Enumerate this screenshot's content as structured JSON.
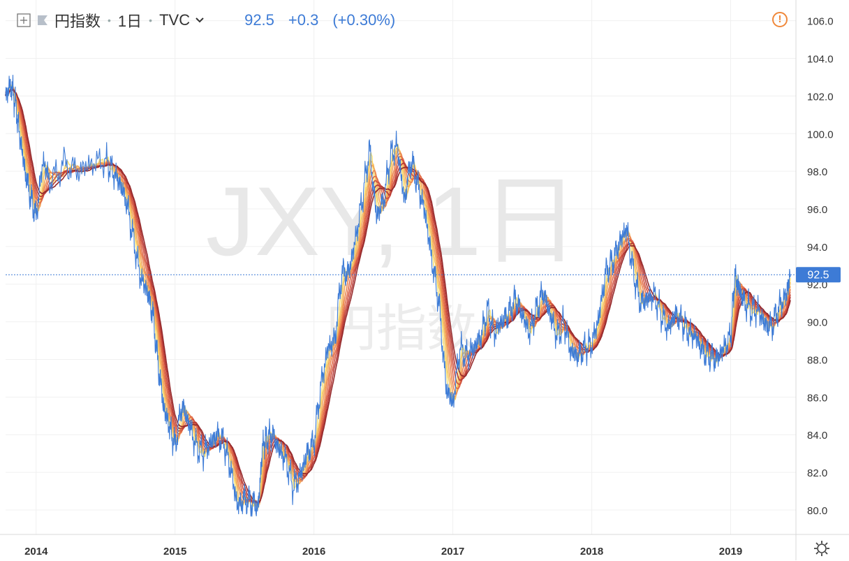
{
  "header": {
    "symbol_name": "円指数",
    "interval": "1日",
    "exchange": "TVC",
    "price": "92.5",
    "change": "+0.3",
    "change_pct": "(+0.30%)"
  },
  "watermark": {
    "symbol": "JXY, 1日",
    "name": "円指数"
  },
  "price_tag": "92.5",
  "colors": {
    "price_line": "#3d7bd6",
    "ribbon": [
      "#f7e27a",
      "#f5c564",
      "#f2a55a",
      "#ec8650",
      "#e06a48",
      "#cf5140",
      "#b63a36",
      "#952a2c"
    ],
    "price_tag_bg": "#3d7bd6",
    "warn": "#f0883a"
  },
  "icons": [
    "add-compare-icon",
    "flag-icon",
    "chevron-down-icon",
    "warning-icon",
    "settings-icon"
  ],
  "chart_data": {
    "type": "line",
    "y_axis_labels": [
      "106.0",
      "104.0",
      "102.0",
      "100.0",
      "98.0",
      "96.0",
      "94.0",
      "92.0",
      "90.0",
      "88.0",
      "86.0",
      "84.0",
      "82.0",
      "80.0"
    ],
    "y_ticks": [
      106,
      104,
      102,
      100,
      98,
      96,
      94,
      92,
      90,
      88,
      86,
      84,
      82,
      80
    ],
    "ylim": [
      78.7,
      107.1
    ],
    "x_labels": [
      "2014",
      "2015",
      "2016",
      "2017",
      "2018",
      "2019"
    ],
    "x_ticks": [
      2014.0,
      2015.0,
      2016.0,
      2017.0,
      2018.0,
      2019.0
    ],
    "xlim": [
      2013.78,
      2019.47
    ],
    "grid": true,
    "last_price": 92.5,
    "series": [
      {
        "x": [
          2013.78,
          2013.82,
          2013.85,
          2013.88,
          2013.92,
          2013.96,
          2014.0,
          2014.05,
          2014.1,
          2014.2,
          2014.3,
          2014.4,
          2014.5,
          2014.55,
          2014.6,
          2014.65,
          2014.7,
          2014.75,
          2014.8,
          2014.84,
          2014.88,
          2014.92,
          2014.96,
          2015.0,
          2015.05,
          2015.1,
          2015.15,
          2015.2,
          2015.25,
          2015.3,
          2015.35,
          2015.4,
          2015.45,
          2015.5,
          2015.55,
          2015.6,
          2015.63,
          2015.66,
          2015.7,
          2015.75,
          2015.8,
          2015.85,
          2015.9,
          2015.95,
          2016.0,
          2016.05,
          2016.1,
          2016.15,
          2016.2,
          2016.25,
          2016.3,
          2016.35,
          2016.4,
          2016.45,
          2016.5,
          2016.55,
          2016.6,
          2016.65,
          2016.7,
          2016.75,
          2016.8,
          2016.85,
          2016.9,
          2016.95,
          2017.0,
          2017.05,
          2017.1,
          2017.15,
          2017.2,
          2017.25,
          2017.3,
          2017.35,
          2017.4,
          2017.45,
          2017.5,
          2017.55,
          2017.6,
          2017.65,
          2017.7,
          2017.75,
          2017.8,
          2017.85,
          2017.9,
          2017.95,
          2018.0,
          2018.05,
          2018.1,
          2018.15,
          2018.2,
          2018.25,
          2018.3,
          2018.35,
          2018.4,
          2018.45,
          2018.5,
          2018.55,
          2018.6,
          2018.65,
          2018.7,
          2018.75,
          2018.8,
          2018.85,
          2018.9,
          2018.95,
          2019.0,
          2019.03,
          2019.06,
          2019.1,
          2019.15,
          2019.2,
          2019.25,
          2019.3,
          2019.35,
          2019.4,
          2019.43
        ],
        "values": [
          102.0,
          102.6,
          101.6,
          100.0,
          98.0,
          96.6,
          95.6,
          98.6,
          97.4,
          98.4,
          98.0,
          98.4,
          98.6,
          98.0,
          97.4,
          96.4,
          94.4,
          92.4,
          91.6,
          90.4,
          87.6,
          85.4,
          84.4,
          83.4,
          85.6,
          84.6,
          83.4,
          83.0,
          83.5,
          84.0,
          83.6,
          82.2,
          80.2,
          80.6,
          80.4,
          80.2,
          83.4,
          83.8,
          84.0,
          83.2,
          82.6,
          81.2,
          81.8,
          83.0,
          83.6,
          86.6,
          88.6,
          89.0,
          92.6,
          92.6,
          94.4,
          96.6,
          99.2,
          95.6,
          96.4,
          98.8,
          99.4,
          96.4,
          98.6,
          97.2,
          95.8,
          93.2,
          91.0,
          86.6,
          85.6,
          88.6,
          88.2,
          88.6,
          89.2,
          90.6,
          89.4,
          90.0,
          90.4,
          91.2,
          90.4,
          89.4,
          90.6,
          91.6,
          90.4,
          89.2,
          90.0,
          88.4,
          88.2,
          88.6,
          88.8,
          90.2,
          92.6,
          93.2,
          94.2,
          95.0,
          92.6,
          91.0,
          91.2,
          91.4,
          90.4,
          89.6,
          90.4,
          90.0,
          89.4,
          89.2,
          88.4,
          88.2,
          88.0,
          88.6,
          89.2,
          92.4,
          91.8,
          91.0,
          90.6,
          90.6,
          89.8,
          89.8,
          90.8,
          91.4,
          92.5
        ]
      }
    ]
  }
}
